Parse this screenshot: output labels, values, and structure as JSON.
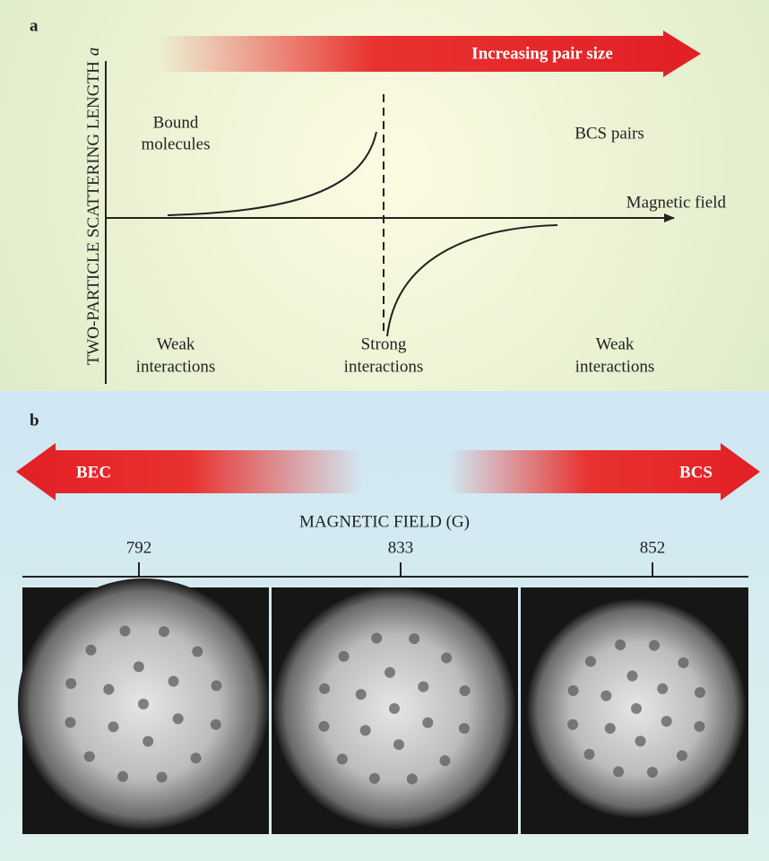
{
  "panel_a": {
    "label": "a",
    "arrow_label": "Increasing pair size",
    "y_axis_label": "TWO-PARTICLE SCATTERING LENGTH",
    "y_axis_symbol": "a",
    "x_axis_label": "Magnetic field",
    "bound_molecules": [
      "Bound",
      "molecules"
    ],
    "bcs_pairs": "BCS pairs",
    "weak_left": [
      "Weak",
      "interactions"
    ],
    "strong": [
      "Strong",
      "interactions"
    ],
    "weak_right": [
      "Weak",
      "interactions"
    ]
  },
  "panel_b": {
    "label": "b",
    "left_arrow": "BEC",
    "right_arrow": "BCS",
    "axis_label": "MAGNETIC FIELD (G)",
    "ticks": [
      792,
      833,
      852
    ]
  }
}
